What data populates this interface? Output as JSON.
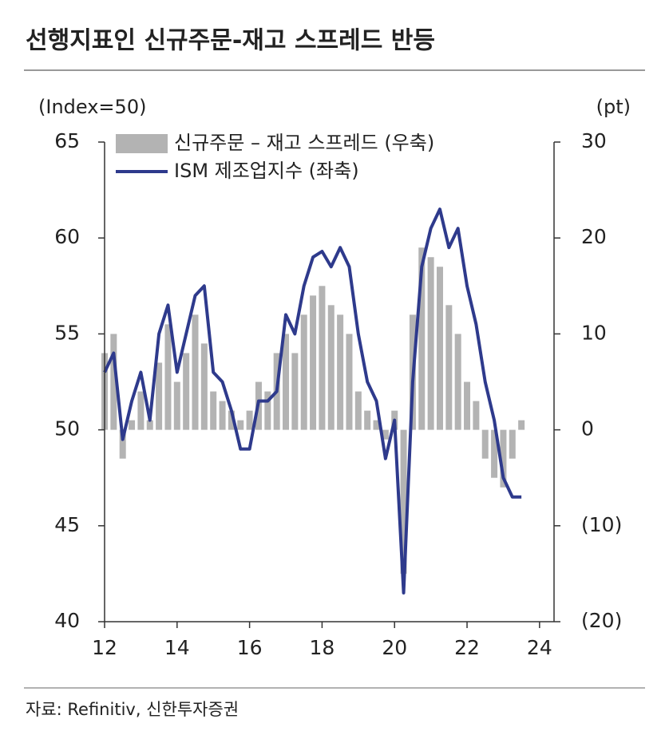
{
  "chart_data": {
    "type": "bar-line",
    "title": "선행지표인 신규주문-재고 스프레드 반등",
    "y_label": "(Index=50)",
    "y2_label": "(pt)",
    "source": "자료: Refinitiv, 신한투자증권",
    "xlim": [
      12,
      24.4
    ],
    "xticks": [
      12,
      14,
      16,
      18,
      20,
      22,
      24
    ],
    "ylim": [
      40,
      65
    ],
    "yticks": [
      40,
      45,
      50,
      55,
      60,
      65
    ],
    "y2lim": [
      -20,
      30
    ],
    "y2ticks": [
      {
        "value": -20,
        "label": "(20)"
      },
      {
        "value": -10,
        "label": "(10)"
      },
      0,
      10,
      20,
      30
    ],
    "x": [
      12,
      12.25,
      12.5,
      12.75,
      13,
      13.25,
      13.5,
      13.75,
      14,
      14.25,
      14.5,
      14.75,
      15,
      15.25,
      15.5,
      15.75,
      16,
      16.25,
      16.5,
      16.75,
      17,
      17.25,
      17.5,
      17.75,
      18,
      18.25,
      18.5,
      18.75,
      19,
      19.25,
      19.5,
      19.75,
      20,
      20.25,
      20.5,
      20.75,
      21,
      21.25,
      21.5,
      21.75,
      22,
      22.25,
      22.5,
      22.75,
      23,
      23.25,
      23.5
    ],
    "series": [
      {
        "name": "신규주문 – 재고 스프레드 (우축)",
        "type": "bar",
        "axis": "y2",
        "color": "#b3b3b3",
        "values": [
          8,
          10,
          -3,
          1,
          4,
          1,
          7,
          11,
          5,
          8,
          12,
          9,
          4,
          3,
          2,
          1,
          2,
          5,
          4,
          8,
          10,
          8,
          12,
          14,
          15,
          13,
          12,
          10,
          4,
          2,
          1,
          -1,
          2,
          -15,
          12,
          19,
          18,
          17,
          13,
          10,
          5,
          3,
          -3,
          -5,
          -6,
          -3,
          1
        ]
      },
      {
        "name": "ISM 제조업지수 (좌축)",
        "type": "line",
        "axis": "y",
        "color": "#2e3a8c",
        "values": [
          53,
          54,
          49.5,
          51.5,
          53,
          50.5,
          55,
          56.5,
          53,
          55,
          57,
          57.5,
          53,
          52.5,
          51,
          49,
          49,
          51.5,
          51.5,
          52,
          56,
          55,
          57.5,
          59,
          59.3,
          58.5,
          59.5,
          58.5,
          55,
          52.5,
          51.5,
          48.5,
          50.5,
          41.5,
          52.5,
          58.5,
          60.5,
          61.5,
          59.5,
          60.5,
          57.5,
          55.5,
          52.5,
          50.5,
          47.5,
          46.5,
          46.5
        ]
      }
    ]
  }
}
